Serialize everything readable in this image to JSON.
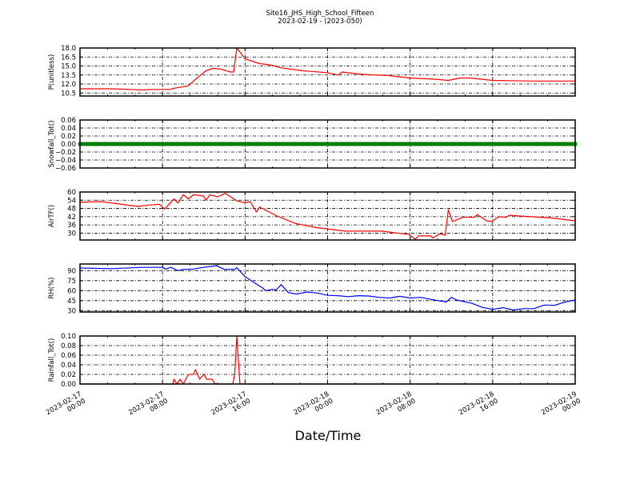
{
  "chart_data": {
    "type": "line",
    "title": "Site16_JHS_High_School_Fifteen",
    "subtitle": "2023-02-19 - (2023-050)",
    "xlabel": "Date/Time",
    "xlim": [
      "2023-02-17 00:00",
      "2023-02-19 00:00"
    ],
    "x_ticks": [
      "2023-02-17 00:00",
      "2023-02-17 08:00",
      "2023-02-17 16:00",
      "2023-02-18 00:00",
      "2023-02-18 08:00",
      "2023-02-18 16:00",
      "2023-02-19 00:00"
    ],
    "x_tick_labels": [
      [
        "2023-02-17",
        "00:00"
      ],
      [
        "2023-02-17",
        "08:00"
      ],
      [
        "2023-02-17",
        "16:00"
      ],
      [
        "2023-02-18",
        "00:00"
      ],
      [
        "2023-02-18",
        "08:00"
      ],
      [
        "2023-02-18",
        "16:00"
      ],
      [
        "2023-02-19",
        "00:00"
      ]
    ],
    "grid": true,
    "panels": [
      {
        "ylabel": "P(unitless)",
        "color": "#ff0000",
        "ylim": [
          10.0,
          18.0
        ],
        "yticks": [
          "10.5",
          "12.0",
          "13.5",
          "15.0",
          "16.5",
          "18.0"
        ],
        "points": [
          [
            "2023-02-17 00:00",
            11.2
          ],
          [
            "2023-02-17 03:00",
            11.2
          ],
          [
            "2023-02-17 05:00",
            11.1
          ],
          [
            "2023-02-17 06:00",
            11.0
          ],
          [
            "2023-02-17 07:00",
            11.1
          ],
          [
            "2023-02-17 08:45",
            11.1
          ],
          [
            "2023-02-17 09:06",
            11.3
          ],
          [
            "2023-02-17 10:30",
            11.7
          ],
          [
            "2023-02-17 11:12",
            12.8
          ],
          [
            "2023-02-17 12:12",
            14.2
          ],
          [
            "2023-02-17 12:54",
            14.6
          ],
          [
            "2023-02-17 13:36",
            14.5
          ],
          [
            "2023-02-17 14:36",
            14.0
          ],
          [
            "2023-02-17 14:54",
            14.0
          ],
          [
            "2023-02-17 15:12",
            18.0
          ],
          [
            "2023-02-17 16:00",
            16.2
          ],
          [
            "2023-02-17 17:24",
            15.4
          ],
          [
            "2023-02-17 18:24",
            15.2
          ],
          [
            "2023-02-17 19:30",
            14.7
          ],
          [
            "2023-02-17 21:36",
            14.2
          ],
          [
            "2023-02-18 00:00",
            13.9
          ],
          [
            "2023-02-18 01:00",
            13.5
          ],
          [
            "2023-02-18 01:24",
            14.0
          ],
          [
            "2023-02-18 03:24",
            13.6
          ],
          [
            "2023-02-18 05:54",
            13.4
          ],
          [
            "2023-02-18 08:00",
            13.0
          ],
          [
            "2023-02-18 10:24",
            12.8
          ],
          [
            "2023-02-18 11:42",
            12.6
          ],
          [
            "2023-02-18 12:48",
            13.0
          ],
          [
            "2023-02-18 13:48",
            13.0
          ],
          [
            "2023-02-18 16:00",
            12.6
          ],
          [
            "2023-02-18 20:00",
            12.5
          ],
          [
            "2023-02-19 00:00",
            12.5
          ]
        ]
      },
      {
        "ylabel": "Snowfall_Tot()",
        "color": "#008000",
        "ylim": [
          -0.06,
          0.06
        ],
        "markers": true,
        "yticks": [
          "−0.06",
          "−0.04",
          "−0.02",
          "0.00",
          "0.02",
          "0.04",
          "0.06"
        ],
        "points": [
          [
            "2023-02-17 00:00",
            0
          ],
          [
            "2023-02-17 01:00",
            0
          ],
          [
            "2023-02-17 02:00",
            0
          ],
          [
            "2023-02-17 03:00",
            0
          ],
          [
            "2023-02-17 04:00",
            0
          ],
          [
            "2023-02-17 05:00",
            0
          ],
          [
            "2023-02-17 06:00",
            0
          ],
          [
            "2023-02-17 07:00",
            0
          ],
          [
            "2023-02-17 08:00",
            0
          ],
          [
            "2023-02-17 09:00",
            0
          ],
          [
            "2023-02-17 10:00",
            0
          ],
          [
            "2023-02-17 11:00",
            0
          ],
          [
            "2023-02-17 12:00",
            0
          ],
          [
            "2023-02-17 13:00",
            0
          ],
          [
            "2023-02-17 14:00",
            0
          ],
          [
            "2023-02-17 15:00",
            0
          ],
          [
            "2023-02-17 16:00",
            0
          ],
          [
            "2023-02-17 17:00",
            0
          ],
          [
            "2023-02-17 18:00",
            0
          ],
          [
            "2023-02-17 19:00",
            0
          ],
          [
            "2023-02-17 20:00",
            0
          ],
          [
            "2023-02-17 21:00",
            0
          ],
          [
            "2023-02-17 22:00",
            0
          ],
          [
            "2023-02-17 23:00",
            0
          ],
          [
            "2023-02-18 00:00",
            0
          ],
          [
            "2023-02-18 01:00",
            0
          ],
          [
            "2023-02-18 02:00",
            0
          ],
          [
            "2023-02-18 03:00",
            0
          ],
          [
            "2023-02-18 04:00",
            0
          ],
          [
            "2023-02-18 05:00",
            0
          ],
          [
            "2023-02-18 06:00",
            0
          ],
          [
            "2023-02-18 07:00",
            0
          ],
          [
            "2023-02-18 08:00",
            0
          ],
          [
            "2023-02-18 09:00",
            0
          ],
          [
            "2023-02-18 10:00",
            0
          ],
          [
            "2023-02-18 11:00",
            0
          ],
          [
            "2023-02-18 12:00",
            0
          ],
          [
            "2023-02-18 13:00",
            0
          ],
          [
            "2023-02-18 14:00",
            0
          ],
          [
            "2023-02-18 15:00",
            0
          ],
          [
            "2023-02-18 16:00",
            0
          ],
          [
            "2023-02-18 17:00",
            0
          ],
          [
            "2023-02-18 18:00",
            0
          ],
          [
            "2023-02-18 19:00",
            0
          ],
          [
            "2023-02-18 20:00",
            0
          ],
          [
            "2023-02-18 21:00",
            0
          ],
          [
            "2023-02-18 22:00",
            0
          ],
          [
            "2023-02-18 23:00",
            0
          ],
          [
            "2023-02-19 00:00",
            0
          ]
        ]
      },
      {
        "ylabel": "AirTF()",
        "color": "#ff0000",
        "ylim": [
          25,
          60
        ],
        "yticks": [
          "30",
          "36",
          "42",
          "48",
          "54",
          "60"
        ],
        "points": [
          [
            "2023-02-17 00:00",
            52.5
          ],
          [
            "2023-02-17 02:00",
            53
          ],
          [
            "2023-02-17 03:36",
            51.5
          ],
          [
            "2023-02-17 05:36",
            49.5
          ],
          [
            "2023-02-17 06:42",
            50.5
          ],
          [
            "2023-02-17 07:42",
            51
          ],
          [
            "2023-02-17 08:12",
            47.5
          ],
          [
            "2023-02-17 09:06",
            55
          ],
          [
            "2023-02-17 09:30",
            52
          ],
          [
            "2023-02-17 10:00",
            58
          ],
          [
            "2023-02-17 10:30",
            55
          ],
          [
            "2023-02-17 11:00",
            58
          ],
          [
            "2023-02-17 12:00",
            57
          ],
          [
            "2023-02-17 12:12",
            54
          ],
          [
            "2023-02-17 12:36",
            58
          ],
          [
            "2023-02-17 13:18",
            56.5
          ],
          [
            "2023-02-17 14:06",
            59
          ],
          [
            "2023-02-17 15:12",
            53.5
          ],
          [
            "2023-02-17 16:00",
            52
          ],
          [
            "2023-02-17 16:30",
            53
          ],
          [
            "2023-02-17 17:06",
            45.5
          ],
          [
            "2023-02-17 17:24",
            49
          ],
          [
            "2023-02-17 19:06",
            42.5
          ],
          [
            "2023-02-17 20:54",
            37
          ],
          [
            "2023-02-17 23:00",
            34
          ],
          [
            "2023-02-18 01:42",
            31.5
          ],
          [
            "2023-02-18 05:12",
            31.5
          ],
          [
            "2023-02-18 07:54",
            29
          ],
          [
            "2023-02-18 08:30",
            25.5
          ],
          [
            "2023-02-18 08:48",
            28
          ],
          [
            "2023-02-18 10:00",
            28
          ],
          [
            "2023-02-18 10:12",
            26.5
          ],
          [
            "2023-02-18 10:54",
            29.5
          ],
          [
            "2023-02-18 11:24",
            28.5
          ],
          [
            "2023-02-18 11:42",
            47
          ],
          [
            "2023-02-18 12:06",
            38.5
          ],
          [
            "2023-02-18 13:06",
            41.5
          ],
          [
            "2023-02-18 14:12",
            41.5
          ],
          [
            "2023-02-18 14:30",
            43.5
          ],
          [
            "2023-02-18 15:24",
            39
          ],
          [
            "2023-02-18 15:54",
            38.5
          ],
          [
            "2023-02-18 16:36",
            42
          ],
          [
            "2023-02-18 17:18",
            41.5
          ],
          [
            "2023-02-18 17:36",
            43
          ],
          [
            "2023-02-18 19:42",
            42
          ],
          [
            "2023-02-18 21:48",
            41
          ],
          [
            "2023-02-19 00:00",
            39
          ]
        ]
      },
      {
        "ylabel": "RH(%)",
        "color": "#0000ff",
        "ylim": [
          28,
          100
        ],
        "yticks": [
          "30",
          "45",
          "60",
          "75",
          "90"
        ],
        "points": [
          [
            "2023-02-17 00:00",
            94
          ],
          [
            "2023-02-17 03:00",
            93
          ],
          [
            "2023-02-17 06:00",
            95
          ],
          [
            "2023-02-17 08:00",
            95
          ],
          [
            "2023-02-17 08:18",
            92.5
          ],
          [
            "2023-02-17 08:48",
            95
          ],
          [
            "2023-02-17 09:30",
            90
          ],
          [
            "2023-02-17 10:00",
            92
          ],
          [
            "2023-02-17 11:00",
            92.5
          ],
          [
            "2023-02-17 12:00",
            95
          ],
          [
            "2023-02-17 13:12",
            97.5
          ],
          [
            "2023-02-17 14:00",
            92
          ],
          [
            "2023-02-17 15:00",
            92
          ],
          [
            "2023-02-17 15:12",
            94.5
          ],
          [
            "2023-02-17 16:00",
            81
          ],
          [
            "2023-02-17 17:00",
            71
          ],
          [
            "2023-02-17 17:42",
            64
          ],
          [
            "2023-02-17 18:00",
            60
          ],
          [
            "2023-02-17 18:36",
            62
          ],
          [
            "2023-02-17 19:00",
            61
          ],
          [
            "2023-02-17 19:30",
            69
          ],
          [
            "2023-02-17 20:12",
            57
          ],
          [
            "2023-02-17 21:00",
            55
          ],
          [
            "2023-02-17 22:00",
            58
          ],
          [
            "2023-02-17 23:00",
            56.5
          ],
          [
            "2023-02-18 00:00",
            53
          ],
          [
            "2023-02-18 01:00",
            52.5
          ],
          [
            "2023-02-18 02:00",
            51
          ],
          [
            "2023-02-18 03:00",
            52.5
          ],
          [
            "2023-02-18 04:00",
            52
          ],
          [
            "2023-02-18 05:00",
            50
          ],
          [
            "2023-02-18 06:00",
            49
          ],
          [
            "2023-02-18 07:00",
            51.5
          ],
          [
            "2023-02-18 08:00",
            49
          ],
          [
            "2023-02-18 09:00",
            50
          ],
          [
            "2023-02-18 10:00",
            47
          ],
          [
            "2023-02-18 11:30",
            43
          ],
          [
            "2023-02-18 12:00",
            50
          ],
          [
            "2023-02-18 12:30",
            46
          ],
          [
            "2023-02-18 14:00",
            41
          ],
          [
            "2023-02-18 15:00",
            35
          ],
          [
            "2023-02-18 16:00",
            32
          ],
          [
            "2023-02-18 17:00",
            34.5
          ],
          [
            "2023-02-18 18:00",
            31
          ],
          [
            "2023-02-18 19:00",
            33
          ],
          [
            "2023-02-18 20:00",
            33
          ],
          [
            "2023-02-18 21:00",
            38.5
          ],
          [
            "2023-02-18 22:00",
            38
          ],
          [
            "2023-02-18 23:00",
            43
          ],
          [
            "2023-02-19 00:00",
            46
          ]
        ]
      },
      {
        "ylabel": "Rainfall_Tot()",
        "color": "#ff0000",
        "ylim": [
          0,
          0.1
        ],
        "yticks": [
          "0.00",
          "0.02",
          "0.04",
          "0.06",
          "0.08",
          "0.10"
        ],
        "points": [
          [
            "2023-02-17 00:00",
            0
          ],
          [
            "2023-02-17 09:00",
            0
          ],
          [
            "2023-02-17 09:06",
            0.01
          ],
          [
            "2023-02-17 09:24",
            0
          ],
          [
            "2023-02-17 09:42",
            0.01
          ],
          [
            "2023-02-17 10:00",
            0
          ],
          [
            "2023-02-17 10:30",
            0.02
          ],
          [
            "2023-02-17 11:00",
            0.02
          ],
          [
            "2023-02-17 11:12",
            0.03
          ],
          [
            "2023-02-17 11:36",
            0.01
          ],
          [
            "2023-02-17 12:00",
            0.02
          ],
          [
            "2023-02-17 12:18",
            0.01
          ],
          [
            "2023-02-17 12:48",
            0.01
          ],
          [
            "2023-02-17 13:06",
            0
          ],
          [
            "2023-02-17 14:48",
            0
          ],
          [
            "2023-02-17 15:00",
            0.02
          ],
          [
            "2023-02-17 15:12",
            0.1
          ],
          [
            "2023-02-17 15:30",
            0
          ],
          [
            "2023-02-19 00:00",
            0
          ]
        ]
      }
    ]
  }
}
